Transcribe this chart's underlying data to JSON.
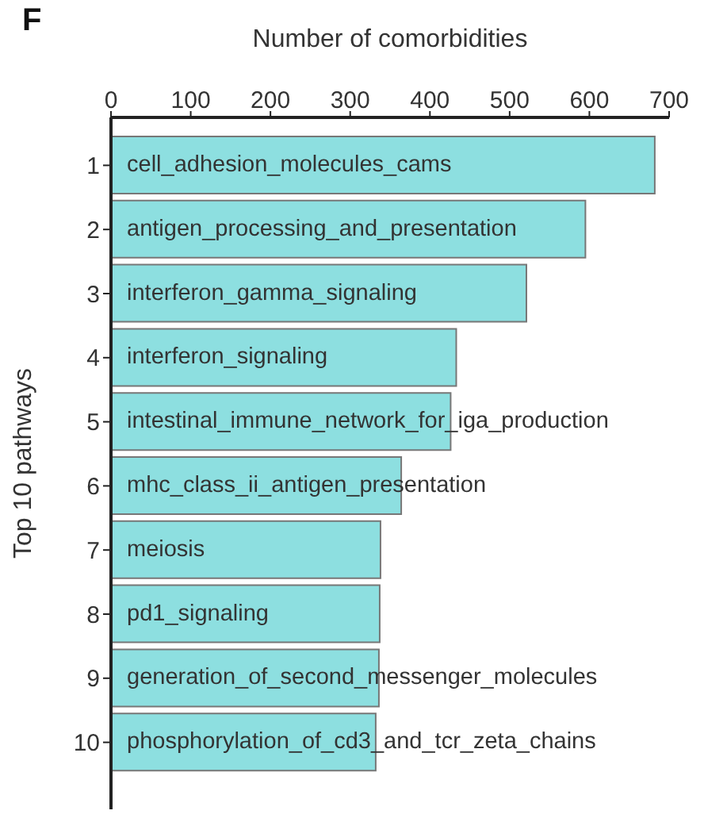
{
  "chart_data": {
    "type": "bar",
    "orientation": "horizontal",
    "xlabel": "Number of comorbidities",
    "ylabel": "Top 10 pathways",
    "categories": [
      "1",
      "2",
      "3",
      "4",
      "5",
      "6",
      "7",
      "8",
      "9",
      "10"
    ],
    "values": [
      682,
      595,
      521,
      433,
      426,
      364,
      338,
      337,
      336,
      332
    ],
    "color": "#8ddfe0",
    "xlim": [
      0,
      700
    ],
    "xticks": [
      0,
      100,
      200,
      300,
      400,
      500,
      600,
      700
    ],
    "grid": false,
    "legend": false,
    "annotations": [
      "F",
      {
        "text": "cell_adhesion_molecules_cams",
        "y": "1"
      },
      {
        "text": "antigen_processing_and_presentation",
        "y": "2"
      },
      {
        "text": "interferon_gamma_signaling",
        "y": "3"
      },
      {
        "text": "interferon_signaling",
        "y": "4"
      },
      {
        "text": "intestinal_immune_network_for_iga_production",
        "y": "5"
      },
      {
        "text": "mhc_class_ii_antigen_presentation",
        "y": "6"
      },
      {
        "text": "meiosis",
        "y": "7"
      },
      {
        "text": "pd1_signaling",
        "y": "8"
      },
      {
        "text": "generation_of_second_messenger_molecules",
        "y": "9"
      },
      {
        "text": "phosphorylation_of_cd3_and_tcr_zeta_chains",
        "y": "10"
      }
    ]
  }
}
